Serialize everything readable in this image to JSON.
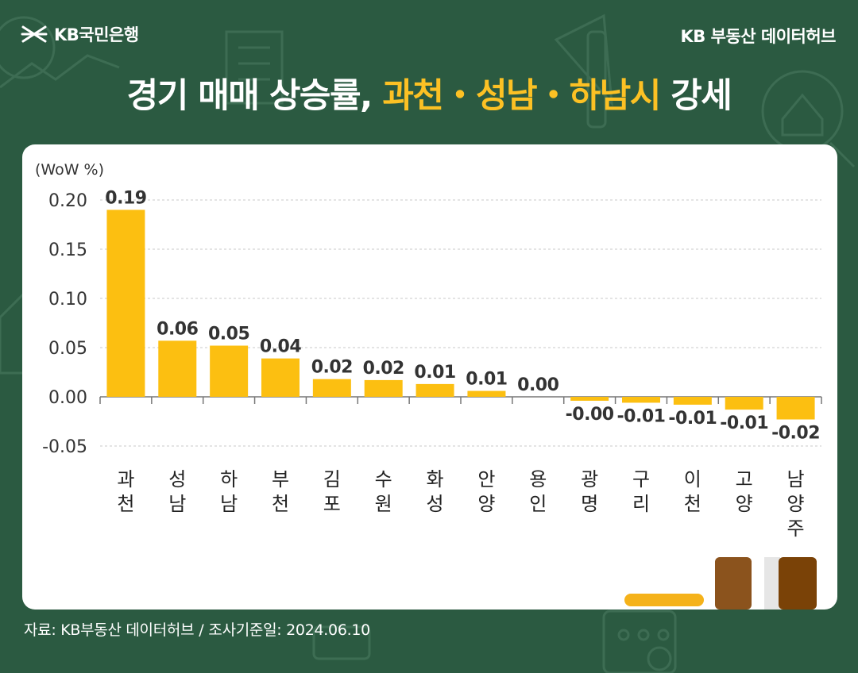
{
  "header": {
    "brand_name": "KB국민은행",
    "hub_name": "KB 부동산 데이터허브",
    "title_parts": [
      {
        "text": "경기 매매 상승률, ",
        "highlight": false
      },
      {
        "text": "과천・성남・하남시",
        "highlight": true
      },
      {
        "text": " 강세",
        "highlight": false
      }
    ]
  },
  "chart_data": {
    "type": "bar",
    "unit_label": "(WoW %)",
    "categories": [
      [
        "과",
        "천"
      ],
      [
        "성",
        "남"
      ],
      [
        "하",
        "남"
      ],
      [
        "부",
        "천"
      ],
      [
        "김",
        "포"
      ],
      [
        "수",
        "원"
      ],
      [
        "화",
        "성"
      ],
      [
        "안",
        "양"
      ],
      [
        "용",
        "인"
      ],
      [
        "광",
        "명"
      ],
      [
        "구",
        "리"
      ],
      [
        "이",
        "천"
      ],
      [
        "고",
        "양"
      ],
      [
        "남",
        "양",
        "주"
      ]
    ],
    "values": [
      0.19,
      0.057,
      0.052,
      0.039,
      0.018,
      0.017,
      0.013,
      0.006,
      0.0,
      -0.004,
      -0.006,
      -0.008,
      -0.013,
      -0.023
    ],
    "value_labels": [
      "0.19",
      "0.06",
      "0.05",
      "0.04",
      "0.02",
      "0.02",
      "0.01",
      "0.01",
      "0.00",
      "-0.00",
      "-0.01",
      "-0.01",
      "-0.01",
      "-0.02"
    ],
    "ylim": [
      -0.05,
      0.2
    ],
    "yticks": [
      0.2,
      0.15,
      0.1,
      0.05,
      0.0,
      -0.05
    ],
    "ytick_labels": [
      "0.20",
      "0.15",
      "0.10",
      "0.05",
      "0.00",
      "-0.05"
    ],
    "grid": true,
    "bar_color": "#fcbf11"
  },
  "footer": {
    "source": "자료: KB부동산 데이터허브",
    "separator": "/",
    "survey_date": "조사기준일: 2024.06.10"
  },
  "colors": {
    "background": "#2b5a41",
    "highlight": "#fcc124",
    "bar": "#fcbf11",
    "book_brown": "#8b531d",
    "book_dark": "#7a4207"
  }
}
